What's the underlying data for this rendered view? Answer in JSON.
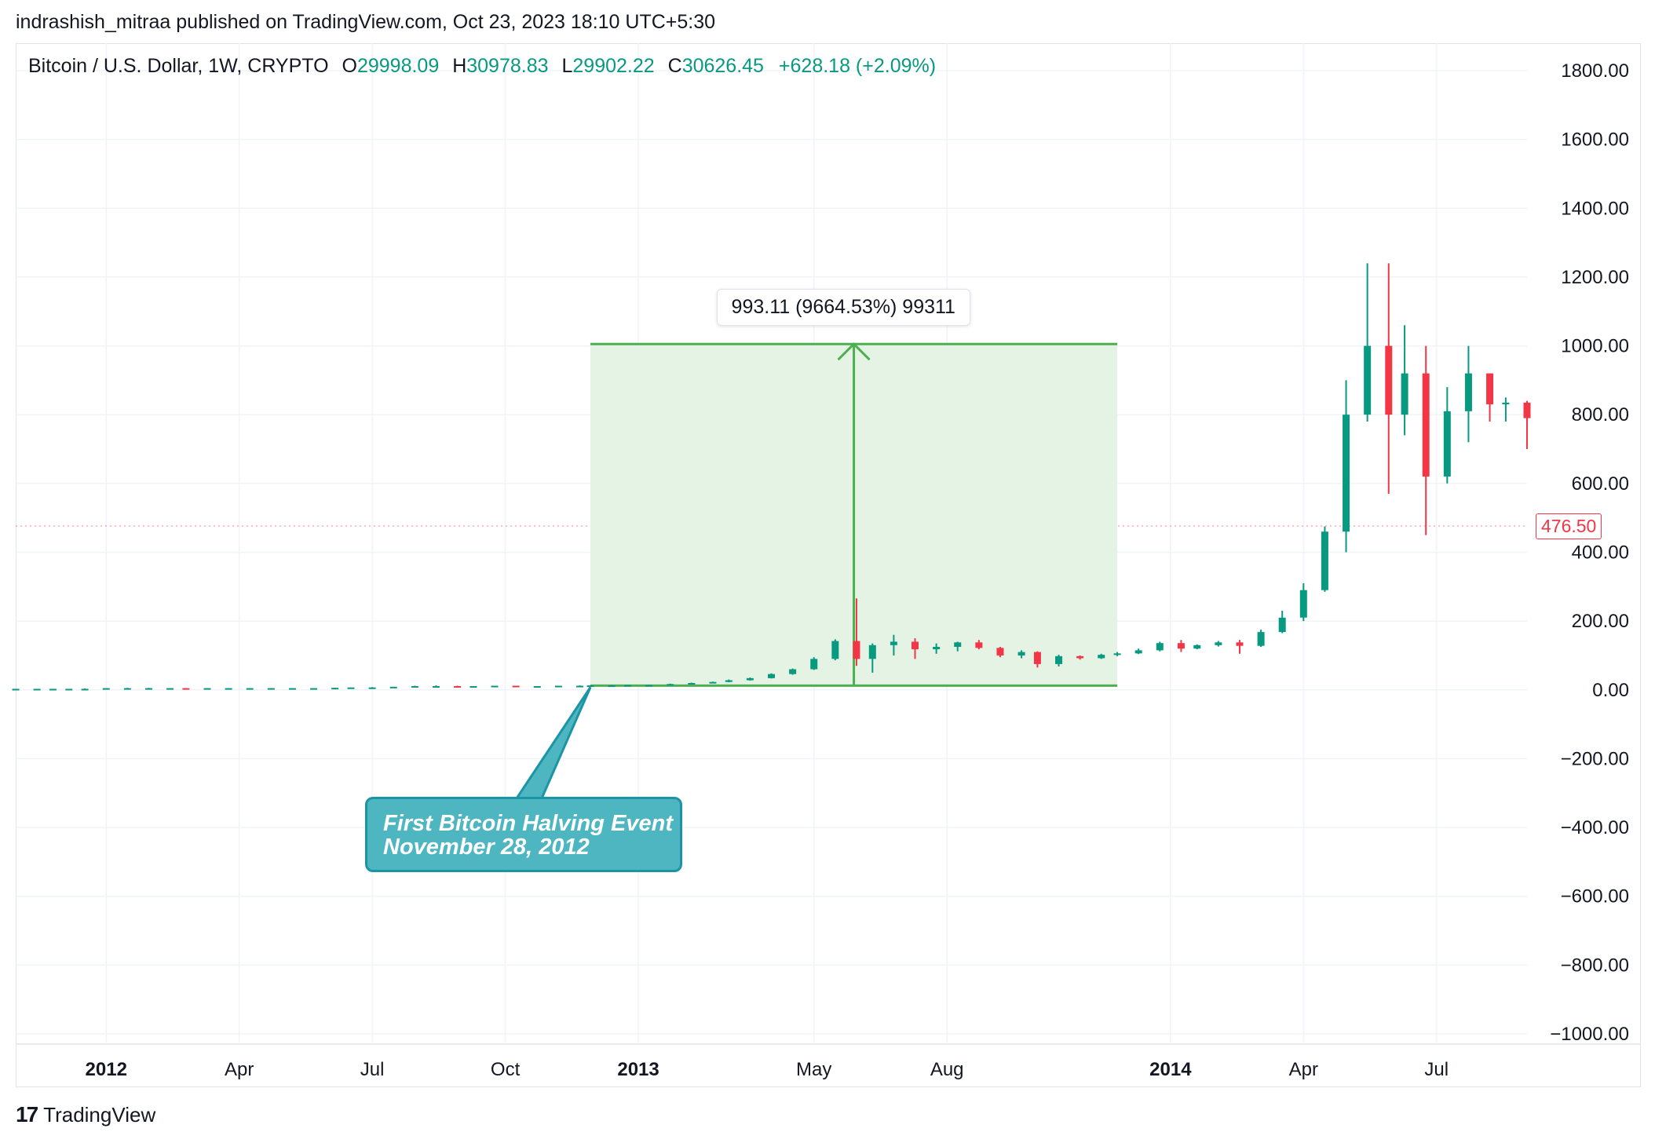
{
  "publisher": "indrashish_mitraa published on TradingView.com, Oct 23, 2023 18:10 UTC+5:30",
  "legend": {
    "symbol": "Bitcoin / U.S. Dollar, 1W, CRYPTO",
    "o_label": "O",
    "o_value": "29998.09",
    "h_label": "H",
    "h_value": "30978.83",
    "l_label": "L",
    "l_value": "29902.22",
    "c_label": "C",
    "c_value": "30626.45",
    "change": "+628.18 (+2.09%)"
  },
  "brand": "TradingView",
  "last_price": "476.50",
  "measurement": "993.11 (9664.53%) 99311",
  "callout": {
    "line1": "First Bitcoin Halving Event",
    "line2": "November 28, 2012"
  },
  "colors": {
    "up": "#089981",
    "down": "#f23645",
    "range_fill": "#e4f3e4",
    "range_line": "#4caf50",
    "callout": "#4db6c1"
  },
  "chart_data": {
    "type": "candlestick",
    "interval": "1W",
    "ylim": [
      -1000,
      1800
    ],
    "yticks": [
      "1800.00",
      "1600.00",
      "1400.00",
      "1200.00",
      "1000.00",
      "800.00",
      "600.00",
      "400.00",
      "200.00",
      "0.00",
      "−200.00",
      "−400.00",
      "−600.00",
      "−800.00",
      "−1000.00"
    ],
    "xticks": [
      {
        "label": "2012",
        "bold": true,
        "x": 2012.0
      },
      {
        "label": "Apr",
        "bold": false,
        "x": 2012.25
      },
      {
        "label": "Jul",
        "bold": false,
        "x": 2012.5
      },
      {
        "label": "Oct",
        "bold": false,
        "x": 2012.75
      },
      {
        "label": "2013",
        "bold": true,
        "x": 2013.0
      },
      {
        "label": "May",
        "bold": false,
        "x": 2013.33
      },
      {
        "label": "Aug",
        "bold": false,
        "x": 2013.58
      },
      {
        "label": "2014",
        "bold": true,
        "x": 2014.0
      },
      {
        "label": "Apr",
        "bold": false,
        "x": 2014.25
      },
      {
        "label": "Jul",
        "bold": false,
        "x": 2014.5
      }
    ],
    "xlim": [
      2011.83,
      2014.67
    ],
    "price_range": {
      "from_x": 2012.91,
      "to_x": 2013.9,
      "low": 12.3,
      "high": 1005.4
    },
    "candles_early": [
      [
        2011.83,
        3,
        3,
        3,
        3
      ],
      [
        2011.87,
        3,
        3,
        3,
        3
      ],
      [
        2011.9,
        3,
        3,
        3,
        3
      ],
      [
        2011.93,
        3,
        3,
        3,
        3
      ],
      [
        2011.96,
        3,
        4,
        3,
        3
      ],
      [
        2012.0,
        4,
        5,
        4,
        5
      ],
      [
        2012.04,
        5,
        6,
        4,
        5
      ],
      [
        2012.08,
        5,
        6,
        5,
        5
      ],
      [
        2012.12,
        5,
        5,
        4,
        5
      ],
      [
        2012.15,
        5,
        5,
        4,
        4
      ],
      [
        2012.19,
        4,
        5,
        4,
        5
      ],
      [
        2012.23,
        5,
        5,
        4,
        5
      ],
      [
        2012.27,
        5,
        5,
        4,
        5
      ],
      [
        2012.31,
        5,
        5,
        4,
        5
      ],
      [
        2012.35,
        5,
        5,
        4,
        5
      ],
      [
        2012.39,
        5,
        5,
        4,
        5
      ],
      [
        2012.43,
        5,
        6,
        5,
        6
      ],
      [
        2012.46,
        6,
        7,
        6,
        7
      ],
      [
        2012.5,
        7,
        8,
        6,
        7
      ],
      [
        2012.54,
        7,
        9,
        6,
        9
      ],
      [
        2012.58,
        9,
        12,
        8,
        11
      ],
      [
        2012.62,
        11,
        13,
        10,
        11
      ],
      [
        2012.66,
        11,
        12,
        10,
        10
      ],
      [
        2012.69,
        10,
        11,
        9,
        11
      ],
      [
        2012.73,
        11,
        12,
        11,
        12
      ],
      [
        2012.77,
        12,
        12,
        11,
        11
      ],
      [
        2012.81,
        11,
        11,
        10,
        11
      ],
      [
        2012.85,
        11,
        12,
        11,
        12
      ],
      [
        2012.89,
        12,
        13,
        11,
        12
      ]
    ],
    "candles": [
      [
        2012.91,
        12,
        13,
        12,
        13
      ],
      [
        2012.95,
        13,
        14,
        13,
        13
      ],
      [
        2012.98,
        13,
        14,
        13,
        14
      ],
      [
        2013.02,
        14,
        15,
        13,
        14
      ],
      [
        2013.06,
        14,
        18,
        14,
        17
      ],
      [
        2013.1,
        17,
        21,
        16,
        20
      ],
      [
        2013.14,
        20,
        24,
        19,
        23
      ],
      [
        2013.17,
        23,
        30,
        22,
        28
      ],
      [
        2013.21,
        28,
        36,
        27,
        34
      ],
      [
        2013.25,
        34,
        48,
        33,
        46
      ],
      [
        2013.29,
        46,
        62,
        44,
        60
      ],
      [
        2013.33,
        60,
        95,
        58,
        90
      ],
      [
        2013.37,
        90,
        147,
        86,
        142
      ],
      [
        2013.41,
        142,
        266,
        70,
        90
      ],
      [
        2013.44,
        90,
        135,
        50,
        130
      ],
      [
        2013.48,
        130,
        160,
        100,
        140
      ],
      [
        2013.52,
        140,
        150,
        90,
        118
      ],
      [
        2013.56,
        118,
        135,
        105,
        125
      ],
      [
        2013.6,
        125,
        140,
        112,
        138
      ],
      [
        2013.64,
        138,
        145,
        118,
        122
      ],
      [
        2013.68,
        122,
        125,
        95,
        100
      ],
      [
        2013.72,
        100,
        115,
        92,
        110
      ],
      [
        2013.75,
        110,
        112,
        65,
        75
      ],
      [
        2013.79,
        75,
        102,
        68,
        98
      ],
      [
        2013.83,
        98,
        100,
        88,
        92
      ],
      [
        2013.87,
        92,
        105,
        90,
        102
      ],
      [
        2013.9,
        102,
        110,
        98,
        106
      ],
      [
        2013.94,
        106,
        120,
        104,
        115
      ],
      [
        2013.98,
        115,
        140,
        112,
        136
      ],
      [
        2014.02,
        136,
        145,
        110,
        120
      ],
      [
        2014.05,
        120,
        132,
        118,
        130
      ],
      [
        2014.09,
        130,
        142,
        126,
        138
      ],
      [
        2014.13,
        138,
        145,
        105,
        128
      ],
      [
        2014.17,
        128,
        175,
        125,
        168
      ],
      [
        2014.21,
        168,
        230,
        165,
        210
      ],
      [
        2014.25,
        210,
        310,
        200,
        290
      ],
      [
        2014.29,
        290,
        475,
        285,
        460
      ],
      [
        2014.33,
        460,
        900,
        400,
        800
      ],
      [
        2014.37,
        800,
        1240,
        780,
        1000
      ],
      [
        2014.41,
        1000,
        1240,
        570,
        800
      ],
      [
        2014.44,
        800,
        1060,
        740,
        920
      ],
      [
        2014.48,
        920,
        1000,
        450,
        620
      ],
      [
        2014.52,
        620,
        880,
        600,
        810
      ],
      [
        2014.56,
        810,
        1000,
        720,
        920
      ],
      [
        2014.6,
        920,
        920,
        780,
        830
      ],
      [
        2014.63,
        830,
        850,
        780,
        835
      ],
      [
        2014.67,
        835,
        840,
        700,
        790
      ]
    ]
  }
}
